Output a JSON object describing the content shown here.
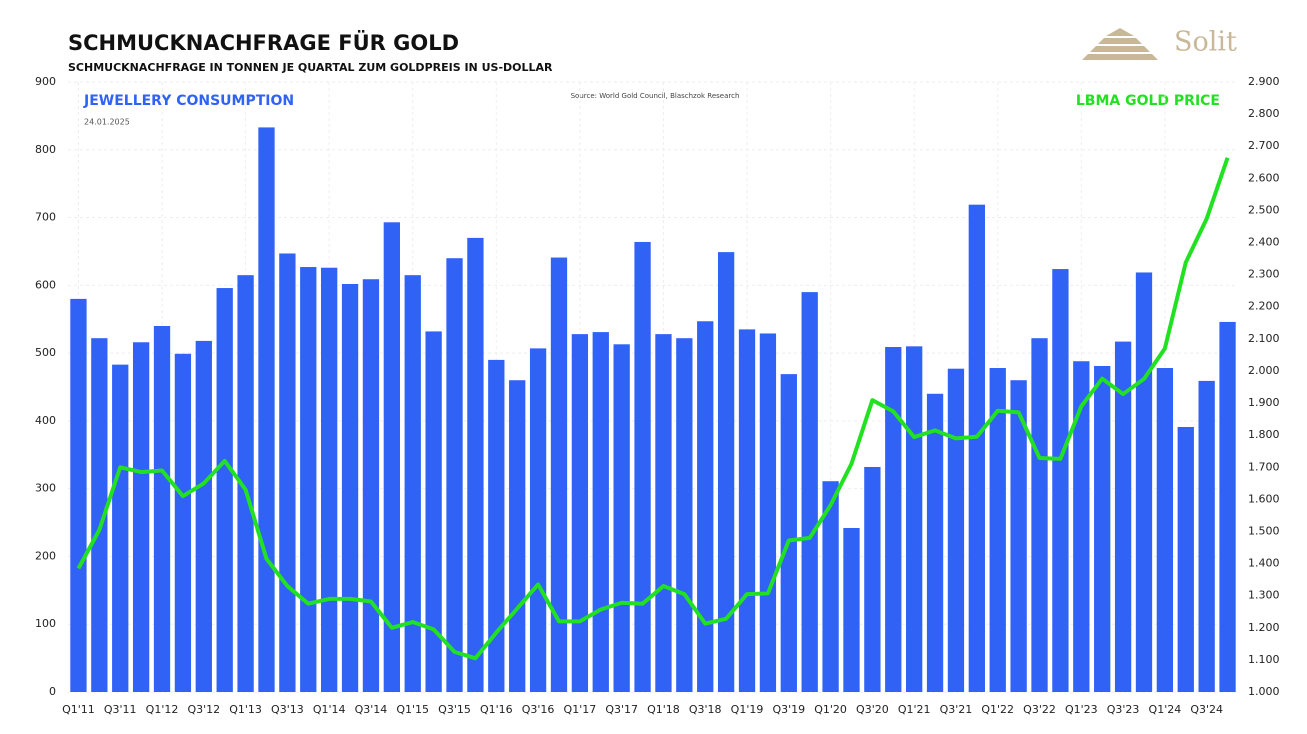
{
  "logo": "Solit",
  "chart_data": {
    "type": "bar_line",
    "title": "SCHMUCKNACHFRAGE FÜR GOLD",
    "subtitle": "SCHMUCKNACHFRAGE IN TONNEN JE QUARTAL ZUM GOLDPREIS IN US-DOLLAR",
    "source": "Source: World Gold Council, Blaschzok Research",
    "date": "24.01.2025",
    "categories": [
      "Q1'11",
      null,
      "Q3'11",
      null,
      "Q1'12",
      null,
      "Q3'12",
      null,
      "Q1'13",
      null,
      "Q3'13",
      null,
      "Q1'14",
      null,
      "Q3'14",
      null,
      "Q1'15",
      null,
      "Q3'15",
      null,
      "Q1'16",
      null,
      "Q3'16",
      null,
      "Q1'17",
      null,
      "Q3'17",
      null,
      "Q1'18",
      null,
      "Q3'18",
      null,
      "Q1'19",
      null,
      "Q3'19",
      null,
      "Q1'20",
      null,
      "Q3'20",
      null,
      "Q1'21",
      null,
      "Q3'21",
      null,
      "Q1'22",
      null,
      "Q3'22",
      null,
      "Q1'23",
      null,
      "Q3'23",
      null,
      "Q1'24",
      null,
      "Q3'24",
      null
    ],
    "series": [
      {
        "name": "JEWELLERY CONSUMPTION",
        "type": "bar",
        "color": "#2f62f5",
        "axis": "y",
        "values": [
          580,
          522,
          483,
          516,
          540,
          499,
          518,
          596,
          615,
          833,
          647,
          627,
          626,
          602,
          609,
          693,
          615,
          532,
          640,
          670,
          490,
          460,
          507,
          641,
          528,
          531,
          513,
          664,
          528,
          522,
          547,
          649,
          535,
          529,
          469,
          590,
          311,
          242,
          332,
          509,
          510,
          440,
          477,
          719,
          478,
          460,
          522,
          624,
          488,
          481,
          517,
          619,
          478,
          391,
          459,
          546
        ]
      },
      {
        "name": "LBMA GOLD PRICE",
        "type": "line",
        "color": "#22e022",
        "axis": "y2",
        "values": [
          1385,
          1505,
          1700,
          1685,
          1690,
          1610,
          1650,
          1720,
          1630,
          1415,
          1330,
          1275,
          1290,
          1290,
          1282,
          1200,
          1218,
          1195,
          1125,
          1105,
          1185,
          1260,
          1335,
          1220,
          1220,
          1257,
          1278,
          1275,
          1330,
          1305,
          1213,
          1228,
          1305,
          1307,
          1472,
          1480,
          1582,
          1711,
          1909,
          1874,
          1794,
          1815,
          1790,
          1795,
          1876,
          1871,
          1729,
          1726,
          1890,
          1976,
          1928,
          1975,
          2070,
          2338,
          2474,
          2664
        ]
      }
    ],
    "ylim": [
      0,
      900
    ],
    "yticks": [
      0,
      100,
      200,
      300,
      400,
      500,
      600,
      700,
      800,
      900
    ],
    "y2lim": [
      1000,
      2900
    ],
    "y2ticks": [
      {
        "value": 1000,
        "label": "1.000"
      },
      {
        "value": 1100,
        "label": "1.100"
      },
      {
        "value": 1200,
        "label": "1.200"
      },
      {
        "value": 1300,
        "label": "1.300"
      },
      {
        "value": 1400,
        "label": "1.400"
      },
      {
        "value": 1500,
        "label": "1.500"
      },
      {
        "value": 1600,
        "label": "1.600"
      },
      {
        "value": 1700,
        "label": "1.700"
      },
      {
        "value": 1800,
        "label": "1.800"
      },
      {
        "value": 1900,
        "label": "1.900"
      },
      {
        "value": 2000,
        "label": "2.000"
      },
      {
        "value": 2100,
        "label": "2.100"
      },
      {
        "value": 2200,
        "label": "2.200"
      },
      {
        "value": 2300,
        "label": "2.300"
      },
      {
        "value": 2400,
        "label": "2.400"
      },
      {
        "value": 2500,
        "label": "2.500"
      },
      {
        "value": 2600,
        "label": "2.600"
      },
      {
        "value": 2700,
        "label": "2.700"
      },
      {
        "value": 2800,
        "label": "2.800"
      },
      {
        "value": 2900,
        "label": "2.900"
      }
    ],
    "grid": true
  }
}
